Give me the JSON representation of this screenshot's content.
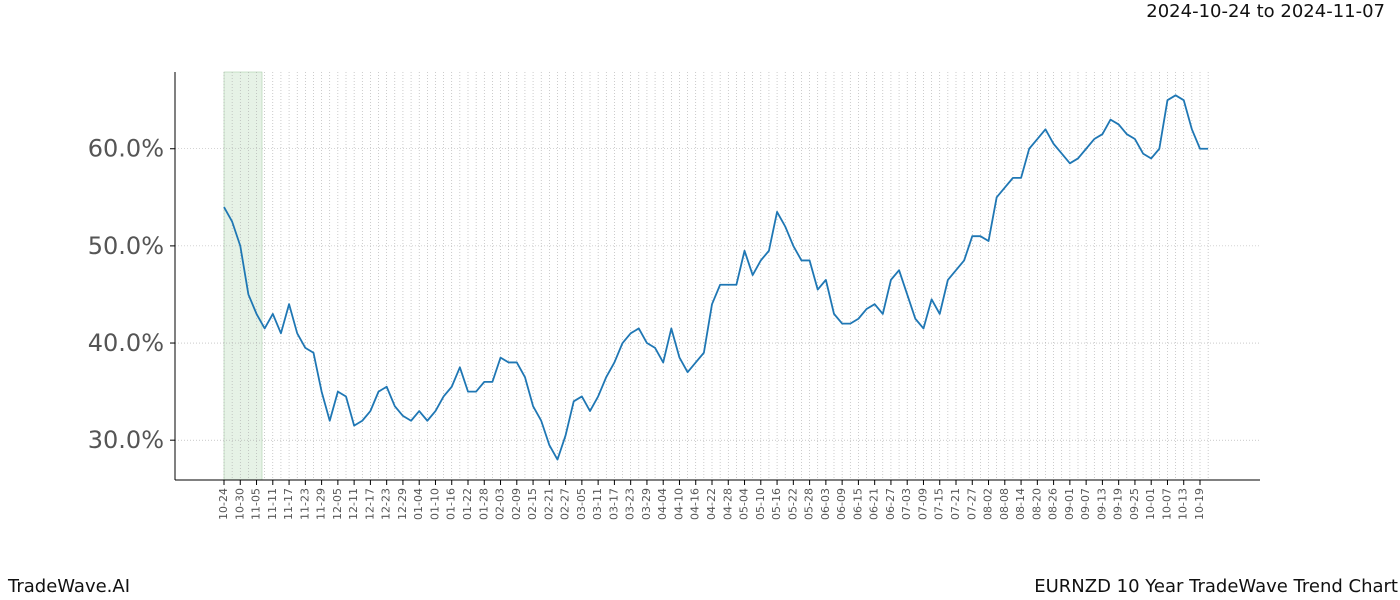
{
  "chart_data": {
    "type": "line",
    "title": "EURNZD 10 Year TradeWave Trend Chart",
    "date_range": "2024-10-24 to 2024-11-07",
    "brand": "TradeWave.AI",
    "color": "#1f77b4",
    "grid": true,
    "categories": [
      "10-24",
      null,
      "10-30",
      null,
      "11-05",
      null,
      "11-11",
      null,
      "11-17",
      null,
      "11-23",
      null,
      "11-29",
      null,
      "12-05",
      null,
      "12-11",
      null,
      "12-17",
      null,
      "12-23",
      null,
      "12-29",
      null,
      "01-04",
      null,
      "01-10",
      null,
      "01-16",
      null,
      "01-22",
      null,
      "01-28",
      null,
      "02-03",
      null,
      "02-09",
      null,
      "02-15",
      null,
      "02-21",
      null,
      "02-27",
      null,
      "03-05",
      null,
      "03-11",
      null,
      "03-17",
      null,
      "03-23",
      null,
      "03-29",
      null,
      "04-04",
      null,
      "04-10",
      null,
      "04-16",
      null,
      "04-22",
      null,
      "04-28",
      null,
      "05-04",
      null,
      "05-10",
      null,
      "05-16",
      null,
      "05-22",
      null,
      "05-28",
      null,
      "06-03",
      null,
      "06-09",
      null,
      "06-15",
      null,
      "06-21",
      null,
      "06-27",
      null,
      "07-03",
      null,
      "07-09",
      null,
      "07-15",
      null,
      "07-21",
      null,
      "07-27",
      null,
      "08-02",
      null,
      "08-08",
      null,
      "08-14",
      null,
      "08-20",
      null,
      "08-26",
      null,
      "09-01",
      null,
      "09-07",
      null,
      "09-13",
      null,
      "09-19",
      null,
      "09-25",
      null,
      "10-01",
      null,
      "10-07",
      null,
      "10-13",
      null,
      "10-19",
      null
    ],
    "values": [
      54,
      52.5,
      50,
      45,
      43,
      41.5,
      43,
      41,
      44,
      41,
      39.5,
      39,
      35,
      32,
      35,
      34.5,
      31.5,
      32,
      33,
      35,
      35.5,
      33.5,
      32.5,
      32,
      33,
      32,
      33,
      34.5,
      35.5,
      37.5,
      35,
      35,
      36,
      36,
      38.5,
      38,
      38,
      36.5,
      33.5,
      32,
      29.5,
      28,
      30.5,
      34,
      34.5,
      33,
      34.5,
      36.5,
      38,
      40,
      41,
      41.5,
      40,
      39.5,
      38,
      41.5,
      38.5,
      37,
      38,
      39,
      44,
      46,
      46,
      46,
      49.5,
      47,
      48.5,
      49.5,
      53.5,
      52,
      50,
      48.5,
      48.5,
      45.5,
      46.5,
      43,
      42,
      42,
      42.5,
      43.5,
      44,
      43,
      46.5,
      47.5,
      45,
      42.5,
      41.5,
      44.5,
      43,
      46.5,
      47.5,
      48.5,
      51,
      51,
      50.5,
      55,
      56,
      57,
      57,
      60,
      61,
      62,
      60.5,
      59.5,
      58.5,
      59,
      60,
      61,
      61.5,
      63,
      62.5,
      61.5,
      61,
      59.5,
      59,
      60,
      65,
      65.5,
      65,
      62,
      60,
      60
    ],
    "ylim": [
      25.9,
      67.9
    ],
    "yticks": [
      {
        "value": 30,
        "label": "30.0%"
      },
      {
        "value": 40,
        "label": "40.0%"
      },
      {
        "value": 50,
        "label": "50.0%"
      },
      {
        "value": 60,
        "label": "60.0%"
      }
    ]
  }
}
